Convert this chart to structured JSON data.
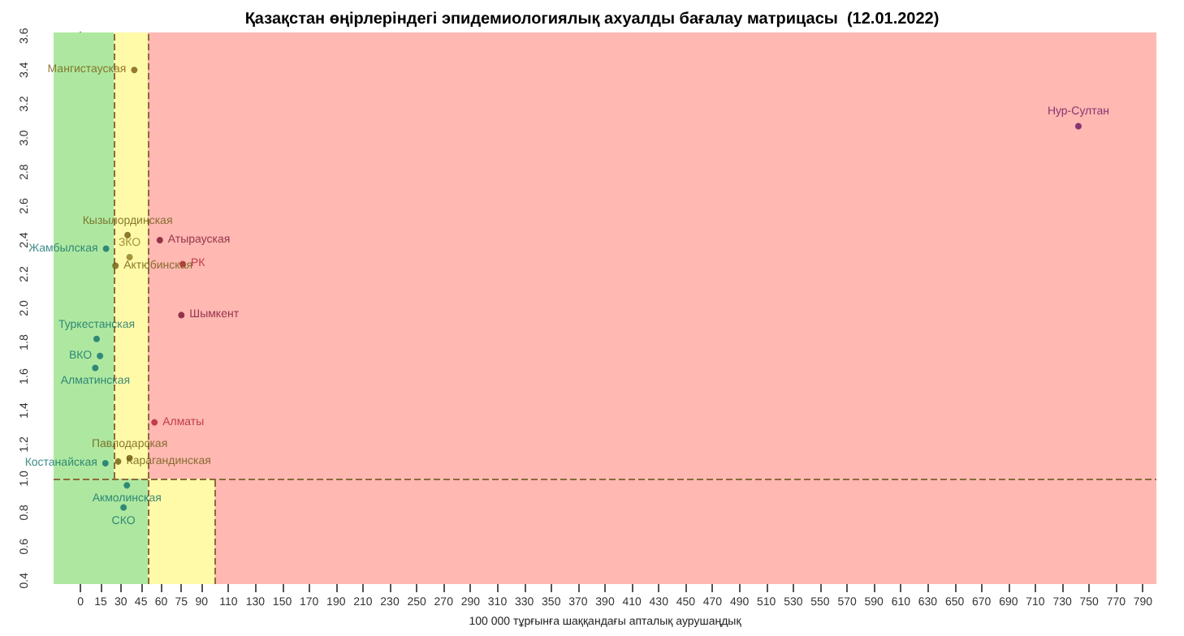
{
  "chart_data": {
    "type": "scatter",
    "title": "Қазақстан өңірлеріндегі эпидемиологиялық ахуалды бағалау матрицасы  (12.01.2022)",
    "xlabel": "100 000 тұрғынға шаққандағы апталық аурушаңдық",
    "x": [
      40,
      35,
      59,
      19,
      36.5,
      26,
      76,
      75,
      12,
      14.5,
      11,
      55,
      36.5,
      28,
      18.5,
      34.5,
      32,
      742
    ],
    "values": [
      3.4,
      2.43,
      2.4,
      2.35,
      2.3,
      2.25,
      2.26,
      1.96,
      1.82,
      1.72,
      1.65,
      1.33,
      1.12,
      1.1,
      1.09,
      0.96,
      0.83,
      3.07
    ],
    "value_labels": [
      "Мангистауская",
      "Кызылординская",
      "Атырауская",
      "Жамбылская",
      "ЗКО",
      "Актюбинская",
      "РК",
      "Шымкент",
      "Туркестанская",
      "ВКО",
      "Алматинская",
      "Алматы",
      "Павлодарская",
      "Карагандинская",
      "Костанайская",
      "Акмолинская",
      "СКО",
      "Нур-Султан"
    ],
    "colors": [
      "#7a5a10",
      "#6b5a10",
      "#7a1030",
      "#10706a",
      "#8a7a20",
      "#6b5a10",
      "#b02030",
      "#7a1030",
      "#10706a",
      "#10706a",
      "#10706a",
      "#b02030",
      "#6b5a10",
      "#6b5a10",
      "#10706a",
      "#10706a",
      "#10706a",
      "#6a1060"
    ],
    "marker": "circle",
    "xlim": [
      -20,
      800
    ],
    "xticks": [
      0,
      15,
      30,
      45,
      60,
      75,
      90,
      110,
      130,
      150,
      170,
      190,
      210,
      230,
      250,
      270,
      290,
      310,
      330,
      350,
      370,
      390,
      410,
      430,
      450,
      470,
      490,
      510,
      530,
      550,
      570,
      590,
      610,
      630,
      650,
      670,
      690,
      710,
      730,
      750,
      770,
      790
    ],
    "ylim": [
      0.38,
      3.62
    ],
    "yticks": [
      0.4,
      0.6,
      0.8,
      {
        "value": 1,
        "label": "1.0"
      },
      1.2,
      1.4,
      1.6,
      1.8,
      {
        "value": 2,
        "label": "2.0"
      },
      2.2,
      2.4,
      2.6,
      2.8,
      {
        "value": 3,
        "label": "3.0"
      },
      3.2,
      3.4,
      3.6
    ],
    "bands": [
      {
        "axis": "x",
        "from": -20,
        "to": 25,
        "color": "#aee8a0"
      },
      {
        "axis": "x",
        "from": 25,
        "to": 50,
        "color": "#fffaa8"
      },
      {
        "axis": "x",
        "from": 50,
        "to": 800,
        "color": "#ffb8b2"
      },
      {
        "axis": "x",
        "from": -20,
        "to": 50,
        "color": "#aee8a0"
      },
      {
        "axis": "x",
        "from": 50,
        "to": 100,
        "color": "#fffaa8"
      },
      {
        "axis": "x",
        "from": 100,
        "to": 800,
        "color": "#ffb8b2"
      }
    ],
    "ref_lines": [
      {
        "axis": "x",
        "value": 25,
        "color": "#8b6b3a",
        "line_style": "dashed"
      },
      {
        "axis": "x",
        "value": 50,
        "color": "#8b6b3a",
        "line_style": "dashed"
      },
      {
        "axis": "x",
        "value": 100,
        "color": "#8b6b3a",
        "line_style": "dashed"
      },
      {
        "axis": "y",
        "value": 1,
        "color": "#8b6b3a",
        "line_style": "dashed"
      }
    ],
    "grid": false
  }
}
